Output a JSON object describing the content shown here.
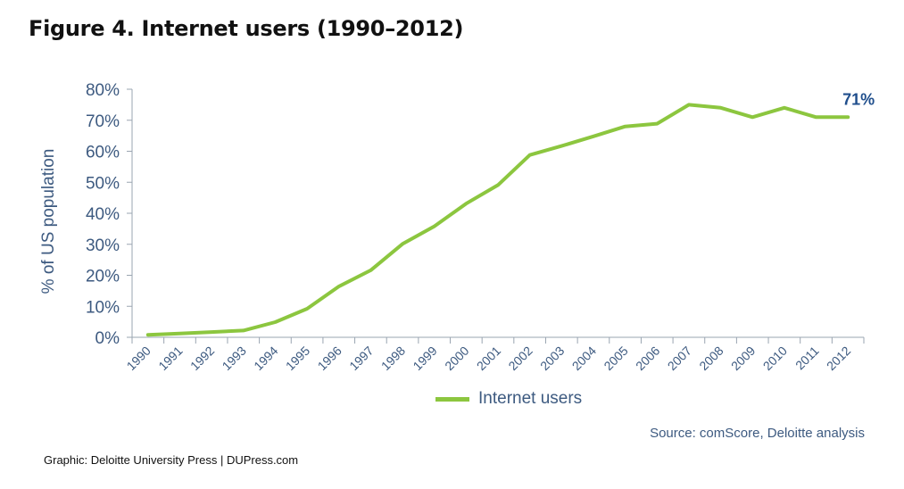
{
  "title": "Figure 4. Internet users (1990–2012)",
  "source": "Source: comScore, Deloitte analysis",
  "credit": "Graphic: Deloitte University Press  |  DUPress.com",
  "colors": {
    "series": "#8cc63f",
    "axis_text": "#3d5a80",
    "annotation": "#1f4e8c",
    "axis": "#9aa5b1"
  },
  "chart_data": {
    "type": "line",
    "title": "Figure 4. Internet users (1990–2012)",
    "xlabel": "",
    "ylabel": "% of US population",
    "ylim": [
      0,
      80
    ],
    "yticks": [
      "0%",
      "10%",
      "20%",
      "30%",
      "40%",
      "50%",
      "60%",
      "70%",
      "80%"
    ],
    "categories": [
      "1990",
      "1991",
      "1992",
      "1993",
      "1994",
      "1995",
      "1996",
      "1997",
      "1998",
      "1999",
      "2000",
      "2001",
      "2002",
      "2003",
      "2004",
      "2005",
      "2006",
      "2007",
      "2008",
      "2009",
      "2010",
      "2011",
      "2012"
    ],
    "series": [
      {
        "name": "Internet users",
        "values": [
          0.8,
          1.2,
          1.7,
          2.2,
          4.9,
          9.2,
          16.4,
          21.6,
          30.1,
          35.8,
          43.1,
          49.1,
          58.8,
          61.7,
          64.8,
          68.0,
          68.9,
          75.0,
          74.0,
          71.0,
          74.0,
          71.0,
          71.0
        ]
      }
    ],
    "annotations": [
      {
        "category": "2012",
        "text": "71%"
      }
    ],
    "legend": "bottom-center",
    "grid": false
  }
}
